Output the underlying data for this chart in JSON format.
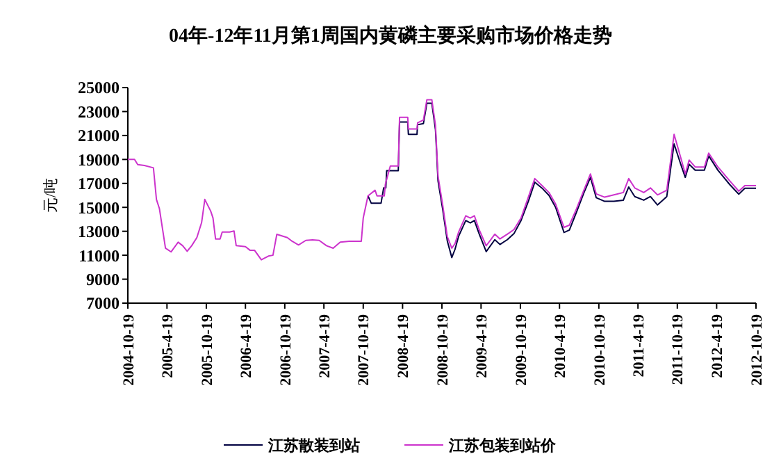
{
  "chart_data": {
    "type": "line",
    "title": "04年-12年11月第1周国内黄磷主要采购市场价格走势",
    "ylabel": "元/吨",
    "ylim": [
      7000,
      25000
    ],
    "yticks": [
      7000,
      9000,
      11000,
      13000,
      15000,
      17000,
      19000,
      21000,
      23000,
      25000
    ],
    "xlim": [
      "2004-10-19",
      "2012-10-19"
    ],
    "xticks": [
      "2004-10-19",
      {
        "value": "2005-04-19",
        "label": "2005-4-19"
      },
      "2005-10-19",
      {
        "value": "2006-04-19",
        "label": "2006-4-19"
      },
      "2006-10-19",
      {
        "value": "2007-04-19",
        "label": "2007-4-19"
      },
      "2007-10-19",
      {
        "value": "2008-04-19",
        "label": "2008-4-19"
      },
      "2008-10-19",
      {
        "value": "2009-04-19",
        "label": "2009-4-19"
      },
      "2009-10-19",
      {
        "value": "2010-04-19",
        "label": "2010-4-19"
      },
      "2010-10-19",
      {
        "value": "2011-04-19",
        "label": "2011-4-19"
      },
      "2011-10-19",
      {
        "value": "2012-04-19",
        "label": "2012-4-19"
      },
      "2012-10-19"
    ],
    "grid": false,
    "legend": "bottom",
    "marker": "none",
    "line_style": "solid",
    "series": [
      {
        "name": "江苏散装到站",
        "color": "#000040",
        "x": [
          "2007-11-10",
          "2007-11-25",
          "2008-01-10",
          "2008-01-22",
          "2008-02-01",
          "2008-02-05",
          "2008-03-30",
          "2008-04-05",
          "2008-05-13",
          "2008-05-16",
          "2008-06-25",
          "2008-06-28",
          "2008-07-25",
          "2008-08-10",
          "2008-09-02",
          "2008-09-19",
          "2008-10-01",
          "2008-10-22",
          "2008-11-13",
          "2008-12-04",
          "2008-12-19",
          "2009-01-05",
          "2009-02-07",
          "2009-02-28",
          "2009-03-19",
          "2009-04-10",
          "2009-05-13",
          "2009-06-22",
          "2009-07-16",
          "2009-08-19",
          "2009-09-19",
          "2009-10-22",
          "2009-11-25",
          "2009-12-25",
          "2010-01-28",
          "2010-03-01",
          "2010-04-01",
          "2010-05-10",
          "2010-06-04",
          "2010-07-07",
          "2010-08-10",
          "2010-09-10",
          "2010-10-07",
          "2010-11-15",
          "2010-12-28",
          "2011-02-10",
          "2011-03-07",
          "2011-04-04",
          "2011-05-16",
          "2011-06-16",
          "2011-07-19",
          "2011-08-31",
          "2011-10-04",
          "2011-11-04",
          "2011-11-25",
          "2011-12-13",
          "2012-01-10",
          "2012-02-22",
          "2012-03-13",
          "2012-04-25",
          "2012-06-19",
          "2012-07-31",
          "2012-08-28",
          "2012-10-19"
        ],
        "values": [
          15960,
          15350,
          15350,
          16630,
          16630,
          18060,
          18060,
          22130,
          22130,
          21100,
          21100,
          21900,
          22000,
          23700,
          23700,
          21500,
          17200,
          14900,
          12200,
          10810,
          11500,
          12600,
          13900,
          13700,
          13900,
          12800,
          11300,
          12300,
          11900,
          12300,
          12800,
          13900,
          15500,
          17100,
          16600,
          16000,
          15000,
          12900,
          13100,
          14600,
          16200,
          17500,
          15800,
          15500,
          15500,
          15600,
          16700,
          15900,
          15600,
          15900,
          15200,
          15900,
          20300,
          18600,
          17500,
          18600,
          18100,
          18100,
          19300,
          18100,
          16900,
          16100,
          16600,
          16600
        ]
      },
      {
        "name": "江苏包装到站价",
        "color": "#cc33cc",
        "x": [
          "2004-10-19",
          "2004-11-19",
          "2004-12-04",
          "2005-01-04",
          "2005-02-15",
          "2005-03-01",
          "2005-03-15",
          "2005-04-12",
          "2005-05-08",
          "2005-06-10",
          "2005-07-01",
          "2005-07-22",
          "2005-08-12",
          "2005-09-05",
          "2005-09-27",
          "2005-10-12",
          "2005-11-08",
          "2005-11-19",
          "2005-12-01",
          "2005-12-22",
          "2006-01-01",
          "2006-02-04",
          "2006-02-25",
          "2006-03-07",
          "2006-04-19",
          "2006-05-10",
          "2006-05-31",
          "2006-07-02",
          "2006-08-04",
          "2006-08-25",
          "2006-09-12",
          "2006-10-31",
          "2006-11-22",
          "2006-12-22",
          "2007-01-25",
          "2007-02-25",
          "2007-03-28",
          "2007-05-01",
          "2007-06-01",
          "2007-07-04",
          "2007-08-16",
          "2007-10-10",
          "2007-10-19",
          "2007-11-10",
          "2007-12-13",
          "2007-12-22",
          "2008-01-25",
          "2008-01-30",
          "2008-02-22",
          "2008-03-30",
          "2008-04-05",
          "2008-05-13",
          "2008-05-16",
          "2008-06-25",
          "2008-06-28",
          "2008-07-25",
          "2008-08-10",
          "2008-09-02",
          "2008-09-19",
          "2008-10-01",
          "2008-10-22",
          "2008-11-13",
          "2008-12-04",
          "2008-12-19",
          "2009-01-05",
          "2009-02-07",
          "2009-02-28",
          "2009-03-19",
          "2009-04-10",
          "2009-05-13",
          "2009-06-22",
          "2009-07-16",
          "2009-08-19",
          "2009-09-19",
          "2009-10-22",
          "2009-11-25",
          "2009-12-25",
          "2010-01-28",
          "2010-03-01",
          "2010-04-01",
          "2010-05-10",
          "2010-06-04",
          "2010-07-07",
          "2010-08-10",
          "2010-09-10",
          "2010-10-07",
          "2010-11-15",
          "2010-12-28",
          "2011-02-10",
          "2011-03-07",
          "2011-04-04",
          "2011-05-16",
          "2011-06-16",
          "2011-07-19",
          "2011-08-31",
          "2011-10-04",
          "2011-11-04",
          "2011-11-25",
          "2011-12-13",
          "2012-01-10",
          "2012-02-22",
          "2012-03-13",
          "2012-04-25",
          "2012-06-19",
          "2012-07-31",
          "2012-08-28",
          "2012-10-19"
        ],
        "values": [
          19000,
          19000,
          18570,
          18500,
          18300,
          15660,
          14880,
          11590,
          11280,
          12090,
          11800,
          11330,
          11800,
          12470,
          13720,
          15660,
          14700,
          14120,
          12360,
          12360,
          12940,
          12940,
          13020,
          11800,
          11720,
          11420,
          11420,
          10620,
          10930,
          11000,
          12750,
          12470,
          12170,
          11860,
          12240,
          12280,
          12240,
          11800,
          11590,
          12090,
          12170,
          12170,
          14110,
          15960,
          16430,
          15960,
          15960,
          16940,
          18450,
          18450,
          22520,
          22520,
          21550,
          21550,
          22060,
          22290,
          23990,
          23990,
          21860,
          17590,
          15270,
          12560,
          11590,
          11980,
          12950,
          14300,
          14110,
          14300,
          13140,
          11790,
          12760,
          12360,
          12760,
          13140,
          14110,
          15850,
          17400,
          16810,
          16240,
          15270,
          13330,
          13520,
          14880,
          16420,
          17790,
          16120,
          15850,
          16040,
          16240,
          17400,
          16620,
          16240,
          16620,
          16040,
          16430,
          21090,
          19150,
          17790,
          18950,
          18370,
          18370,
          19530,
          18370,
          17210,
          16350,
          16810,
          16810
        ]
      }
    ]
  }
}
